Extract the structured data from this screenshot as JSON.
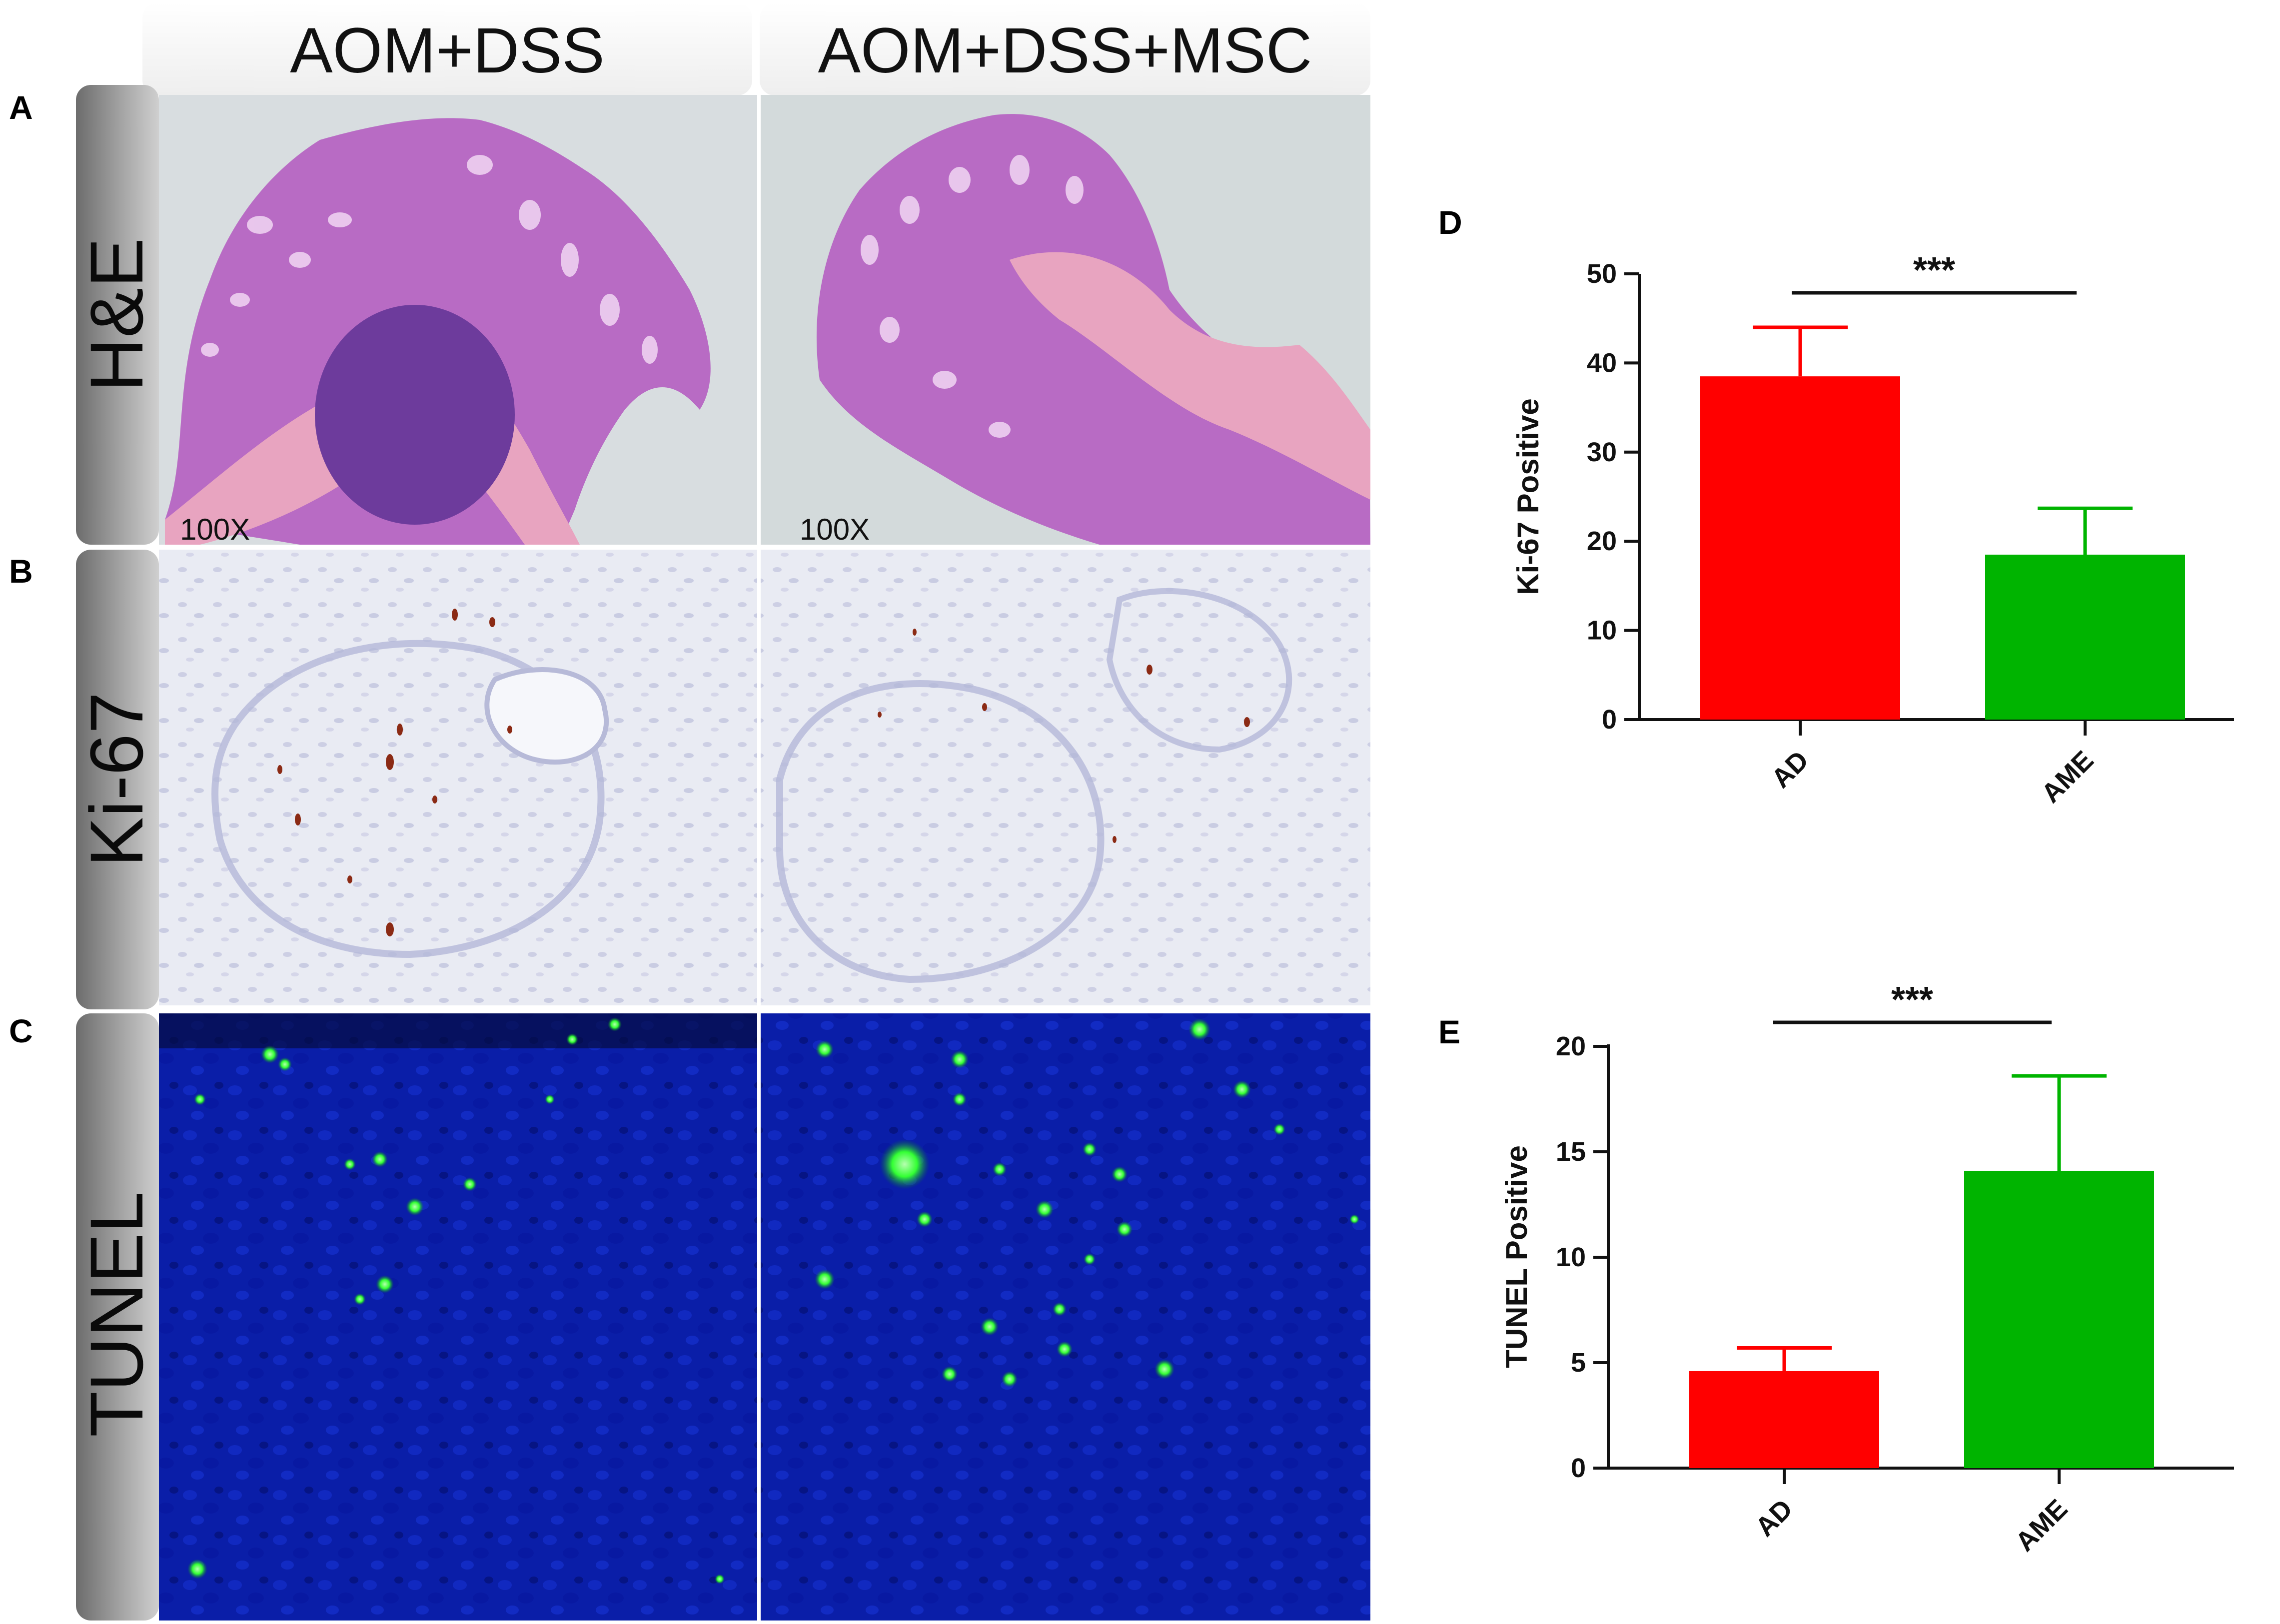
{
  "panels": {
    "A": "A",
    "B": "B",
    "C": "C",
    "D": "D",
    "E": "E"
  },
  "columns": [
    "AOM+DSS",
    "AOM+DSS+MSC"
  ],
  "rows": [
    "H&E",
    "Ki-67",
    "TUNEL"
  ],
  "magnification": [
    "100X",
    "100X"
  ],
  "colors": {
    "bar_ad": "#ff0000",
    "bar_ame": "#00b400",
    "tunel_bg": "#0a1ea8",
    "tunel_signal": "#33ff33",
    "he_tissue": "#b86bc4",
    "he_muscle": "#e8a4c0",
    "ki67_bg": "#e9ebf3",
    "ki67_signal": "#8b2a14"
  },
  "chart_data": [
    {
      "type": "bar",
      "panel": "D",
      "categories": [
        "AD",
        "AME"
      ],
      "values": [
        38.5,
        18.5
      ],
      "errors": [
        5.5,
        5.2
      ],
      "ylabel": "Ki-67 Positive",
      "ylim": [
        0,
        50
      ],
      "yticks": [
        0,
        10,
        20,
        30,
        40,
        50
      ],
      "significance": "***",
      "colors": [
        "#ff0000",
        "#00b400"
      ]
    },
    {
      "type": "bar",
      "panel": "E",
      "categories": [
        "AD",
        "AME"
      ],
      "values": [
        4.6,
        14.1
      ],
      "errors": [
        1.1,
        4.5
      ],
      "ylabel": "TUNEL Positive",
      "ylim": [
        0,
        20
      ],
      "yticks": [
        0,
        5,
        10,
        15,
        20
      ],
      "significance": "***",
      "colors": [
        "#ff0000",
        "#00b400"
      ]
    }
  ]
}
